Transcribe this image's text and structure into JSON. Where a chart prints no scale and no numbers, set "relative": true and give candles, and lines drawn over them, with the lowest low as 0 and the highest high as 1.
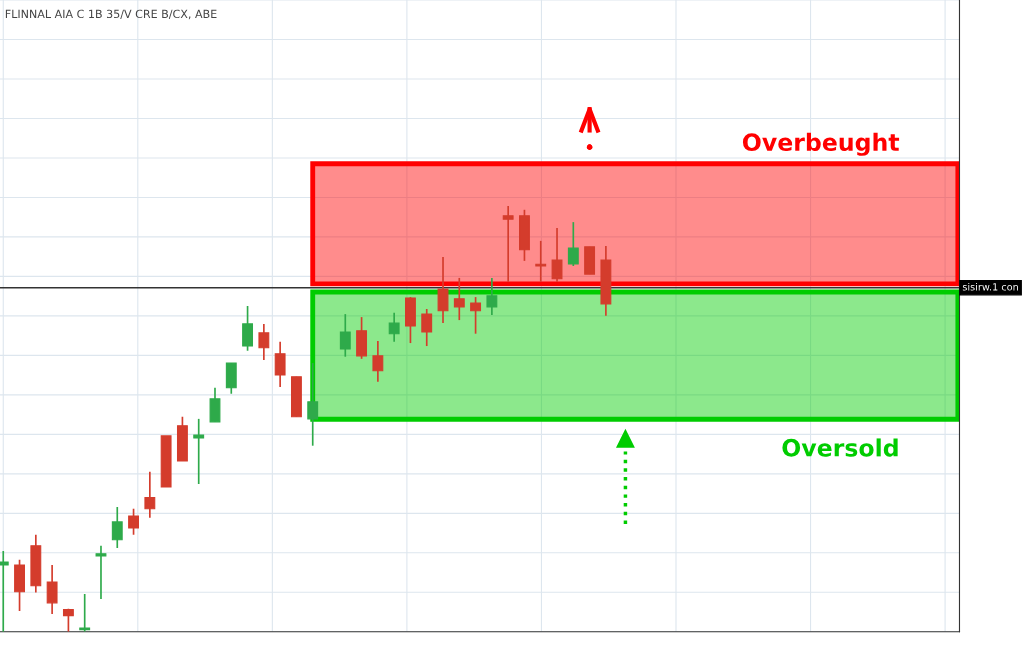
{
  "chart_data": {
    "type": "candlestick",
    "title": "FLINNAL AIA C 1B 35/V CRE B/CX, ABE",
    "relative": true,
    "categories": [
      null,
      null,
      null,
      null,
      null,
      null,
      null,
      null,
      null,
      null,
      null,
      null,
      null,
      null,
      null,
      null,
      null,
      null,
      null,
      null,
      null,
      null,
      null,
      null,
      null,
      null,
      null,
      null,
      null,
      null,
      null,
      null,
      null,
      null,
      null,
      null,
      null,
      null
    ],
    "ohlc": [
      [
        0.157,
        0.19,
        0,
        0.164
      ],
      [
        0.157,
        0.169,
        0.049,
        0.094
      ],
      [
        0.202,
        0.228,
        0.092,
        0.108
      ],
      [
        0.117,
        0.157,
        0.042,
        0.068
      ],
      [
        0.052,
        0.054,
        0,
        0.038
      ],
      [
        0.005,
        0.089,
        0,
        0.007
      ],
      [
        0.178,
        0.202,
        0.077,
        0.183
      ],
      [
        0.216,
        0.293,
        0.197,
        0.258
      ],
      [
        0.272,
        0.289,
        0.228,
        0.244
      ],
      [
        0.315,
        0.376,
        0.268,
        0.289
      ],
      [
        0.46,
        0.46,
        0.34,
        0.34
      ],
      [
        0.484,
        0.505,
        0.401,
        0.401
      ],
      [
        0.455,
        0.5,
        0.347,
        0.462
      ],
      [
        0.493,
        0.573,
        0.493,
        0.547
      ],
      [
        0.573,
        0.631,
        0.559,
        0.631
      ],
      [
        0.671,
        0.765,
        0.66,
        0.723
      ],
      [
        0.702,
        0.723,
        0.638,
        0.667
      ],
      [
        0.653,
        0.681,
        0.575,
        0.603
      ],
      [
        0.599,
        0.599,
        0.505,
        0.505
      ],
      [
        0.5,
        0.631,
        0.437,
        0.54
      ],
      null,
      [
        0.664,
        0.746,
        0.646,
        0.704
      ],
      [
        0.707,
        0.739,
        0.641,
        0.648
      ],
      [
        0.648,
        0.683,
        0.587,
        0.613
      ],
      [
        0.7,
        0.749,
        0.681,
        0.725
      ],
      [
        0.784,
        0.786,
        0.678,
        0.718
      ],
      [
        0.746,
        0.758,
        0.671,
        0.704
      ],
      [
        0.805,
        0.88,
        0.725,
        0.754
      ],
      [
        0.782,
        0.831,
        0.732,
        0.763
      ],
      [
        0.772,
        0.786,
        0.7,
        0.754
      ],
      [
        0.763,
        0.831,
        0.744,
        0.789
      ],
      [
        0.977,
        1,
        0.822,
        0.969
      ],
      [
        0.977,
        0.991,
        0.871,
        0.897
      ],
      [
        0.862,
        0.918,
        0.822,
        0.859
      ],
      [
        0.873,
        0.948,
        0.822,
        0.829
      ],
      [
        0.864,
        0.962,
        0.859,
        0.901
      ],
      [
        0.904,
        0.904,
        0.84,
        0.84
      ],
      [
        0.873,
        0.906,
        0.742,
        0.77
      ]
    ],
    "colors": [
      "#2eaa4a",
      "#d43c2c",
      "#d43c2c",
      "#d43c2c",
      "#d43c2c",
      "#2eaa4a",
      "#2eaa4a",
      "#2eaa4a",
      "#d43c2c",
      "#d43c2c",
      "#d43c2c",
      "#d43c2c",
      "#2eaa4a",
      "#2eaa4a",
      "#2eaa4a",
      "#2eaa4a",
      "#d43c2c",
      "#d43c2c",
      "#d43c2c",
      "#2eaa4a",
      null,
      "#2eaa4a",
      "#d43c2c",
      "#d43c2c",
      "#2eaa4a",
      "#d43c2c",
      "#d43c2c",
      "#d43c2c",
      "#d43c2c",
      "#d43c2c",
      "#2eaa4a",
      "#d43c2c",
      "#d43c2c",
      "#d43c2c",
      "#d43c2c",
      "#2eaa4a",
      "#d43c2c",
      "#d43c2c"
    ],
    "bands": [
      {
        "axis": "y",
        "from": 0.817,
        "to": 1.099,
        "label": "Overbeught",
        "color": "#ff0000"
      },
      {
        "axis": "y",
        "from": 0.499,
        "to": 0.798,
        "label": "Oversold",
        "color": "#00cc00"
      }
    ],
    "ref_lines": [
      {
        "axis": "y",
        "value": 0.808,
        "label": "sisirw.1 con",
        "color": "#333333"
      }
    ],
    "grid": true,
    "tick_labels": false
  }
}
